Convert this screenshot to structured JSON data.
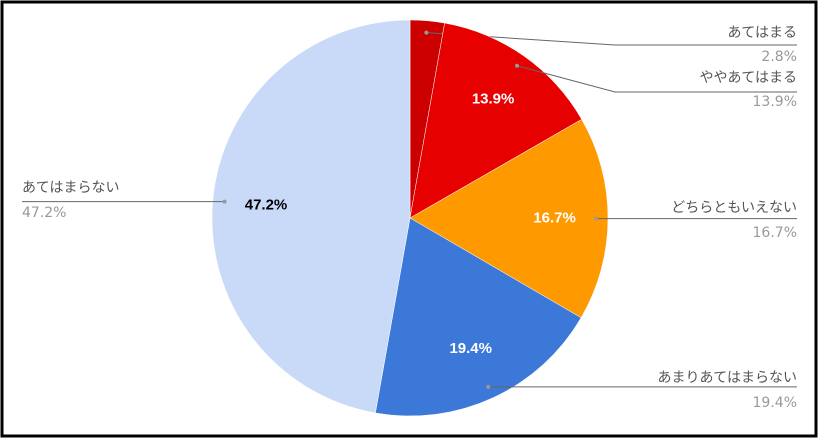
{
  "chart_data": {
    "type": "pie",
    "categories": [
      "あてはまる",
      "ややあてはまる",
      "どちらともいえない",
      "あまりあてはまらない",
      "あてはまらない"
    ],
    "values": [
      2.8,
      13.9,
      16.7,
      19.4,
      47.2
    ],
    "value_labels": [
      "2.8%",
      "13.9%",
      "16.7%",
      "19.4%",
      "47.2%"
    ],
    "colors": [
      "#cc0000",
      "#e60000",
      "#ff9900",
      "#3c78d8",
      "#c9daf8"
    ]
  }
}
